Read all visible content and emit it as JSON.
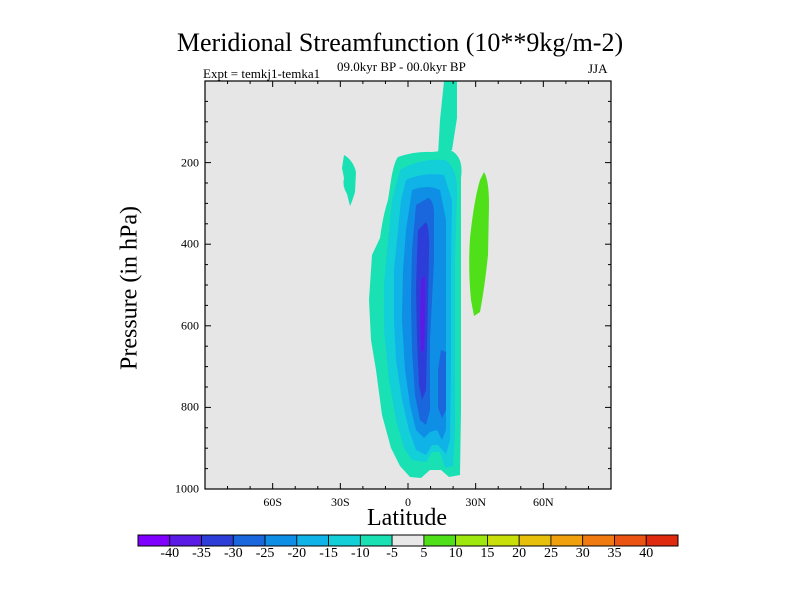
{
  "chart_data": {
    "type": "contour",
    "title": "Meridional Streamfunction (10**9kg/m-2)",
    "subtitle_left": "Expt = temkj1-temka1",
    "subtitle_center": "09.0kyr BP - 00.0kyr BP",
    "subtitle_right": "JJA",
    "xlabel": "Latitude",
    "ylabel": "Pressure (in hPa)",
    "xlim": [
      -90,
      90
    ],
    "ylim": [
      1000,
      0
    ],
    "x_ticks": [
      {
        "value": -60,
        "label": "60S"
      },
      {
        "value": -30,
        "label": "30S"
      },
      {
        "value": 0,
        "label": "0"
      },
      {
        "value": 30,
        "label": "30N"
      },
      {
        "value": 60,
        "label": "60N"
      }
    ],
    "y_ticks": [
      {
        "value": 200,
        "label": "200"
      },
      {
        "value": 400,
        "label": "400"
      },
      {
        "value": 600,
        "label": "600"
      },
      {
        "value": 800,
        "label": "800"
      },
      {
        "value": 1000,
        "label": "1000"
      }
    ],
    "colorbar": {
      "levels": [
        -40,
        -35,
        -30,
        -25,
        -20,
        -15,
        -10,
        -5,
        5,
        10,
        15,
        20,
        25,
        30,
        35,
        40
      ],
      "labels": [
        "-40",
        "-35",
        "-30",
        "-25",
        "-20",
        "-15",
        "-10",
        "-5",
        "5",
        "10",
        "15",
        "20",
        "25",
        "30",
        "35",
        "40"
      ],
      "colors": [
        "#7f00ff",
        "#5a1be6",
        "#2d3ed8",
        "#1a66dd",
        "#0f8ee6",
        "#10b3e8",
        "#12cfd8",
        "#19e1b3",
        "#e8e8e8",
        "#4fe01a",
        "#9ee80f",
        "#c9df0a",
        "#e6c00a",
        "#f0a00d",
        "#f07a10",
        "#ea5312",
        "#e02a10"
      ]
    },
    "features": [
      {
        "name": "southern negative cell",
        "sign": "negative",
        "lat_range": [
          -20,
          22
        ],
        "p_range": [
          140,
          970
        ],
        "min": -35
      },
      {
        "name": "upper narrow negative plume",
        "sign": "negative",
        "lat_range": [
          15,
          22
        ],
        "p_range": [
          0,
          150
        ],
        "min": -10
      },
      {
        "name": "small negative patch",
        "sign": "negative",
        "lat_range": [
          -29,
          -24
        ],
        "p_range": [
          170,
          290
        ],
        "min": -10
      },
      {
        "name": "positive cell",
        "sign": "positive",
        "lat_range": [
          27,
          33
        ],
        "p_range": [
          220,
          570
        ],
        "max": 10
      }
    ]
  }
}
